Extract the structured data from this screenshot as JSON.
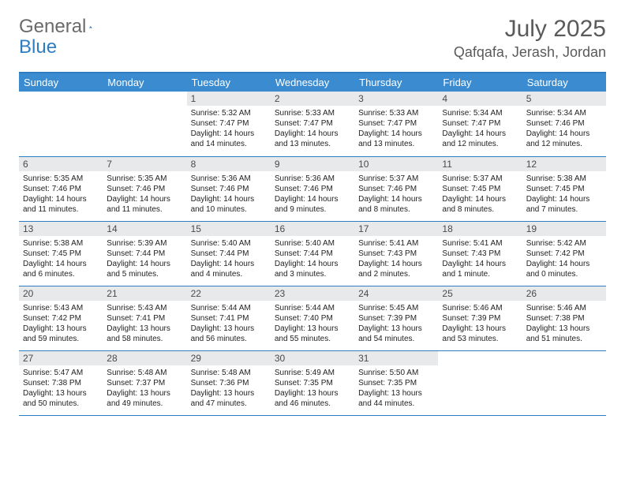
{
  "logo": {
    "text1": "General",
    "text2": "Blue"
  },
  "title": "July 2025",
  "location": "Qafqafa, Jerash, Jordan",
  "colors": {
    "header_bg": "#3a8bd0",
    "border": "#2f7dc0",
    "daynum_bg": "#e8e9ea",
    "text_muted": "#5a5a5a"
  },
  "weekdays": [
    "Sunday",
    "Monday",
    "Tuesday",
    "Wednesday",
    "Thursday",
    "Friday",
    "Saturday"
  ],
  "weeks": [
    [
      {
        "empty": true
      },
      {
        "empty": true
      },
      {
        "n": "1",
        "sr": "5:32 AM",
        "ss": "7:47 PM",
        "dl": "14 hours and 14 minutes."
      },
      {
        "n": "2",
        "sr": "5:33 AM",
        "ss": "7:47 PM",
        "dl": "14 hours and 13 minutes."
      },
      {
        "n": "3",
        "sr": "5:33 AM",
        "ss": "7:47 PM",
        "dl": "14 hours and 13 minutes."
      },
      {
        "n": "4",
        "sr": "5:34 AM",
        "ss": "7:47 PM",
        "dl": "14 hours and 12 minutes."
      },
      {
        "n": "5",
        "sr": "5:34 AM",
        "ss": "7:46 PM",
        "dl": "14 hours and 12 minutes."
      }
    ],
    [
      {
        "n": "6",
        "sr": "5:35 AM",
        "ss": "7:46 PM",
        "dl": "14 hours and 11 minutes."
      },
      {
        "n": "7",
        "sr": "5:35 AM",
        "ss": "7:46 PM",
        "dl": "14 hours and 11 minutes."
      },
      {
        "n": "8",
        "sr": "5:36 AM",
        "ss": "7:46 PM",
        "dl": "14 hours and 10 minutes."
      },
      {
        "n": "9",
        "sr": "5:36 AM",
        "ss": "7:46 PM",
        "dl": "14 hours and 9 minutes."
      },
      {
        "n": "10",
        "sr": "5:37 AM",
        "ss": "7:46 PM",
        "dl": "14 hours and 8 minutes."
      },
      {
        "n": "11",
        "sr": "5:37 AM",
        "ss": "7:45 PM",
        "dl": "14 hours and 8 minutes."
      },
      {
        "n": "12",
        "sr": "5:38 AM",
        "ss": "7:45 PM",
        "dl": "14 hours and 7 minutes."
      }
    ],
    [
      {
        "n": "13",
        "sr": "5:38 AM",
        "ss": "7:45 PM",
        "dl": "14 hours and 6 minutes."
      },
      {
        "n": "14",
        "sr": "5:39 AM",
        "ss": "7:44 PM",
        "dl": "14 hours and 5 minutes."
      },
      {
        "n": "15",
        "sr": "5:40 AM",
        "ss": "7:44 PM",
        "dl": "14 hours and 4 minutes."
      },
      {
        "n": "16",
        "sr": "5:40 AM",
        "ss": "7:44 PM",
        "dl": "14 hours and 3 minutes."
      },
      {
        "n": "17",
        "sr": "5:41 AM",
        "ss": "7:43 PM",
        "dl": "14 hours and 2 minutes."
      },
      {
        "n": "18",
        "sr": "5:41 AM",
        "ss": "7:43 PM",
        "dl": "14 hours and 1 minute."
      },
      {
        "n": "19",
        "sr": "5:42 AM",
        "ss": "7:42 PM",
        "dl": "14 hours and 0 minutes."
      }
    ],
    [
      {
        "n": "20",
        "sr": "5:43 AM",
        "ss": "7:42 PM",
        "dl": "13 hours and 59 minutes."
      },
      {
        "n": "21",
        "sr": "5:43 AM",
        "ss": "7:41 PM",
        "dl": "13 hours and 58 minutes."
      },
      {
        "n": "22",
        "sr": "5:44 AM",
        "ss": "7:41 PM",
        "dl": "13 hours and 56 minutes."
      },
      {
        "n": "23",
        "sr": "5:44 AM",
        "ss": "7:40 PM",
        "dl": "13 hours and 55 minutes."
      },
      {
        "n": "24",
        "sr": "5:45 AM",
        "ss": "7:39 PM",
        "dl": "13 hours and 54 minutes."
      },
      {
        "n": "25",
        "sr": "5:46 AM",
        "ss": "7:39 PM",
        "dl": "13 hours and 53 minutes."
      },
      {
        "n": "26",
        "sr": "5:46 AM",
        "ss": "7:38 PM",
        "dl": "13 hours and 51 minutes."
      }
    ],
    [
      {
        "n": "27",
        "sr": "5:47 AM",
        "ss": "7:38 PM",
        "dl": "13 hours and 50 minutes."
      },
      {
        "n": "28",
        "sr": "5:48 AM",
        "ss": "7:37 PM",
        "dl": "13 hours and 49 minutes."
      },
      {
        "n": "29",
        "sr": "5:48 AM",
        "ss": "7:36 PM",
        "dl": "13 hours and 47 minutes."
      },
      {
        "n": "30",
        "sr": "5:49 AM",
        "ss": "7:35 PM",
        "dl": "13 hours and 46 minutes."
      },
      {
        "n": "31",
        "sr": "5:50 AM",
        "ss": "7:35 PM",
        "dl": "13 hours and 44 minutes."
      },
      {
        "empty": true
      },
      {
        "empty": true
      }
    ]
  ],
  "labels": {
    "sunrise": "Sunrise:",
    "sunset": "Sunset:",
    "daylight": "Daylight:"
  }
}
